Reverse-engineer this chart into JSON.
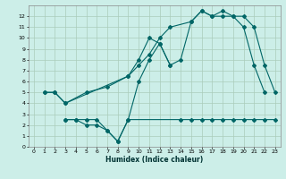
{
  "xlabel": "Humidex (Indice chaleur)",
  "bg_color": "#cceee8",
  "grid_color": "#aaccbb",
  "line_color": "#006666",
  "xlim": [
    -0.5,
    23.5
  ],
  "ylim": [
    0,
    13
  ],
  "xticks": [
    0,
    1,
    2,
    3,
    4,
    5,
    6,
    7,
    8,
    9,
    10,
    11,
    12,
    13,
    14,
    15,
    16,
    17,
    18,
    19,
    20,
    21,
    22,
    23
  ],
  "yticks": [
    0,
    1,
    2,
    3,
    4,
    5,
    6,
    7,
    8,
    9,
    10,
    11,
    12
  ],
  "line1_x": [
    1,
    2,
    3,
    5,
    7,
    9,
    10,
    11,
    12,
    13,
    15,
    16,
    17,
    18,
    19,
    20,
    21,
    22
  ],
  "line1_y": [
    5,
    5,
    4,
    5,
    5.5,
    6.5,
    7.5,
    8.5,
    10,
    11,
    11.5,
    12.5,
    12,
    12,
    12,
    11,
    7.5,
    5
  ],
  "line2_x": [
    1,
    2,
    3,
    9,
    10,
    11,
    12,
    13,
    14,
    15,
    16,
    17,
    18,
    19,
    20,
    21,
    22,
    23
  ],
  "line2_y": [
    5,
    5,
    4,
    6.5,
    8,
    10,
    9.5,
    7.5,
    8,
    11.5,
    12.5,
    12,
    12.5,
    12,
    12,
    11,
    7.5,
    5
  ],
  "line3_x": [
    3,
    4,
    5,
    6,
    7,
    8,
    9,
    14,
    15,
    16,
    17,
    18,
    19,
    20,
    21,
    22,
    23
  ],
  "line3_y": [
    2.5,
    2.5,
    2.5,
    2.5,
    1.5,
    0.5,
    2.5,
    2.5,
    2.5,
    2.5,
    2.5,
    2.5,
    2.5,
    2.5,
    2.5,
    2.5,
    2.5
  ],
  "line4_x": [
    3,
    4,
    5,
    6,
    7,
    8,
    9,
    10,
    11,
    12,
    13
  ],
  "line4_y": [
    2.5,
    2.5,
    2,
    2,
    1.5,
    0.5,
    2.5,
    6,
    8,
    9.5,
    7.5
  ]
}
